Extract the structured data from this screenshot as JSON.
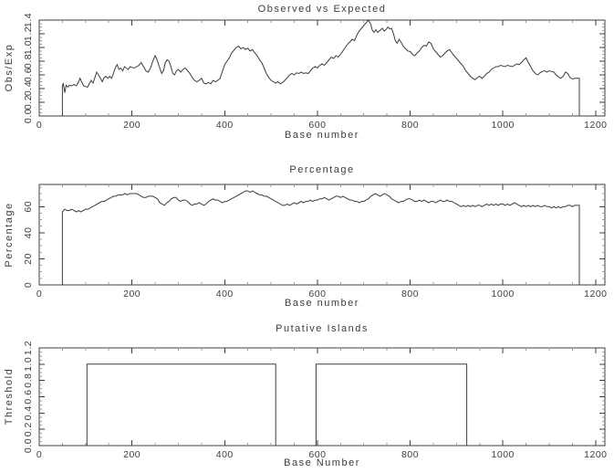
{
  "figure": {
    "background": "#ffffff",
    "line_color": "#3d3d3d",
    "minor_tick_color": "#9a9a9a",
    "text_color": "#3d3d3d"
  },
  "chart_data": [
    {
      "type": "line",
      "title": "Observed vs Expected",
      "xlabel": "Base number",
      "ylabel": "Obs/Exp",
      "xlim": [
        0,
        1220
      ],
      "ylim": [
        0,
        1.4
      ],
      "xticks": [
        0,
        200,
        400,
        600,
        800,
        1000,
        1200
      ],
      "x_minor": 50,
      "yticks": [
        0.0,
        0.2,
        0.4,
        0.6,
        0.8,
        1.0,
        1.2,
        1.4
      ],
      "ytick_labels": [
        "0.0",
        "0.2",
        "0.4",
        "0.6",
        "0.8",
        "1.0",
        "1.2",
        "1.4"
      ],
      "y_minor": 0.05,
      "grid": false,
      "legend": "none",
      "x": [
        50,
        50,
        52,
        55,
        58,
        62,
        65,
        70,
        75,
        80,
        85,
        88,
        92,
        96,
        100,
        104,
        108,
        112,
        116,
        120,
        124,
        128,
        132,
        136,
        140,
        144,
        148,
        152,
        156,
        160,
        164,
        168,
        172,
        176,
        180,
        184,
        188,
        192,
        196,
        200,
        205,
        210,
        215,
        220,
        225,
        230,
        235,
        240,
        245,
        250,
        253,
        256,
        260,
        264,
        268,
        272,
        276,
        280,
        284,
        288,
        292,
        296,
        300,
        305,
        310,
        315,
        320,
        325,
        330,
        335,
        340,
        345,
        350,
        355,
        360,
        365,
        370,
        375,
        380,
        385,
        390,
        395,
        400,
        405,
        410,
        415,
        420,
        425,
        430,
        435,
        440,
        445,
        450,
        455,
        460,
        465,
        470,
        475,
        480,
        485,
        490,
        495,
        500,
        505,
        510,
        515,
        520,
        525,
        530,
        535,
        540,
        545,
        550,
        555,
        560,
        565,
        570,
        575,
        580,
        585,
        590,
        595,
        600,
        605,
        610,
        615,
        620,
        625,
        630,
        635,
        640,
        645,
        650,
        655,
        660,
        665,
        670,
        675,
        680,
        685,
        690,
        695,
        700,
        705,
        710,
        715,
        718,
        722,
        726,
        730,
        735,
        740,
        744,
        748,
        752,
        756,
        760,
        764,
        768,
        772,
        776,
        780,
        785,
        790,
        795,
        800,
        805,
        810,
        815,
        820,
        825,
        830,
        835,
        840,
        845,
        850,
        855,
        860,
        865,
        870,
        875,
        880,
        885,
        890,
        895,
        900,
        905,
        910,
        915,
        920,
        925,
        930,
        935,
        940,
        945,
        950,
        955,
        960,
        965,
        970,
        975,
        980,
        985,
        990,
        995,
        1000,
        1005,
        1010,
        1015,
        1020,
        1025,
        1030,
        1035,
        1040,
        1045,
        1050,
        1055,
        1060,
        1065,
        1070,
        1075,
        1080,
        1085,
        1090,
        1095,
        1100,
        1105,
        1110,
        1115,
        1120,
        1125,
        1130,
        1135,
        1140,
        1145,
        1150,
        1155,
        1160,
        1165,
        1165
      ],
      "y": [
        0,
        0.44,
        0.48,
        0.34,
        0.45,
        0.42,
        0.45,
        0.44,
        0.46,
        0.44,
        0.5,
        0.55,
        0.49,
        0.44,
        0.43,
        0.42,
        0.47,
        0.52,
        0.48,
        0.56,
        0.64,
        0.6,
        0.55,
        0.5,
        0.56,
        0.58,
        0.55,
        0.58,
        0.55,
        0.62,
        0.7,
        0.75,
        0.68,
        0.7,
        0.66,
        0.72,
        0.7,
        0.68,
        0.72,
        0.71,
        0.7,
        0.72,
        0.74,
        0.78,
        0.72,
        0.66,
        0.64,
        0.7,
        0.8,
        0.88,
        0.84,
        0.78,
        0.7,
        0.62,
        0.66,
        0.78,
        0.82,
        0.8,
        0.72,
        0.62,
        0.6,
        0.66,
        0.68,
        0.64,
        0.68,
        0.7,
        0.66,
        0.62,
        0.56,
        0.52,
        0.5,
        0.52,
        0.55,
        0.48,
        0.47,
        0.49,
        0.47,
        0.52,
        0.5,
        0.52,
        0.55,
        0.65,
        0.75,
        0.8,
        0.85,
        0.92,
        0.96,
        1.0,
        1.02,
        0.98,
        1.0,
        0.97,
        0.99,
        0.95,
        0.97,
        0.92,
        0.88,
        0.82,
        0.78,
        0.7,
        0.62,
        0.56,
        0.52,
        0.5,
        0.48,
        0.5,
        0.47,
        0.49,
        0.52,
        0.56,
        0.6,
        0.62,
        0.6,
        0.63,
        0.62,
        0.64,
        0.62,
        0.63,
        0.62,
        0.66,
        0.7,
        0.72,
        0.7,
        0.74,
        0.76,
        0.74,
        0.78,
        0.82,
        0.86,
        0.84,
        0.88,
        0.86,
        0.9,
        0.95,
        1.0,
        1.05,
        1.08,
        1.12,
        1.1,
        1.18,
        1.24,
        1.28,
        1.32,
        1.36,
        1.4,
        1.34,
        1.26,
        1.22,
        1.26,
        1.22,
        1.25,
        1.28,
        1.24,
        1.26,
        1.3,
        1.27,
        1.28,
        1.2,
        1.1,
        1.06,
        1.12,
        1.08,
        1.02,
        0.98,
        0.95,
        0.94,
        0.9,
        0.88,
        0.92,
        0.95,
        1.0,
        1.03,
        1.02,
        1.08,
        1.06,
        0.98,
        0.94,
        0.9,
        0.86,
        0.88,
        0.92,
        0.95,
        0.97,
        0.92,
        0.88,
        0.84,
        0.8,
        0.76,
        0.72,
        0.66,
        0.62,
        0.58,
        0.55,
        0.53,
        0.56,
        0.58,
        0.55,
        0.58,
        0.62,
        0.64,
        0.68,
        0.7,
        0.72,
        0.72,
        0.74,
        0.73,
        0.72,
        0.74,
        0.73,
        0.72,
        0.74,
        0.76,
        0.75,
        0.78,
        0.82,
        0.85,
        0.78,
        0.72,
        0.66,
        0.62,
        0.6,
        0.63,
        0.65,
        0.66,
        0.64,
        0.66,
        0.65,
        0.64,
        0.6,
        0.57,
        0.55,
        0.58,
        0.64,
        0.62,
        0.56,
        0.54,
        0.55,
        0.55,
        0.55,
        0
      ]
    },
    {
      "type": "line",
      "title": "Percentage",
      "xlabel": "Base number",
      "ylabel": "Percentage",
      "xlim": [
        0,
        1220
      ],
      "ylim": [
        0,
        77
      ],
      "xticks": [
        0,
        200,
        400,
        600,
        800,
        1000,
        1200
      ],
      "x_minor": 50,
      "yticks": [
        0,
        20,
        40,
        60
      ],
      "ytick_labels": [
        "0",
        "20",
        "40",
        "60"
      ],
      "y_minor": 5,
      "grid": false,
      "legend": "none",
      "x": [
        50,
        50,
        55,
        60,
        65,
        70,
        75,
        80,
        85,
        90,
        95,
        100,
        105,
        110,
        115,
        120,
        125,
        130,
        135,
        140,
        145,
        150,
        155,
        160,
        165,
        170,
        175,
        180,
        185,
        190,
        195,
        200,
        205,
        210,
        215,
        220,
        225,
        230,
        235,
        240,
        245,
        250,
        255,
        260,
        265,
        270,
        275,
        280,
        285,
        290,
        295,
        300,
        305,
        310,
        315,
        320,
        325,
        330,
        335,
        340,
        345,
        350,
        355,
        360,
        365,
        370,
        375,
        380,
        385,
        390,
        395,
        400,
        405,
        410,
        415,
        420,
        425,
        430,
        435,
        440,
        445,
        450,
        455,
        460,
        465,
        470,
        475,
        480,
        485,
        490,
        495,
        500,
        505,
        510,
        515,
        520,
        525,
        530,
        535,
        540,
        545,
        550,
        555,
        560,
        565,
        570,
        575,
        580,
        585,
        590,
        595,
        600,
        605,
        610,
        615,
        620,
        625,
        630,
        635,
        640,
        645,
        650,
        655,
        660,
        665,
        670,
        675,
        680,
        685,
        690,
        695,
        700,
        705,
        710,
        715,
        720,
        725,
        730,
        735,
        740,
        745,
        750,
        755,
        760,
        765,
        770,
        775,
        780,
        785,
        790,
        795,
        800,
        805,
        810,
        815,
        820,
        825,
        830,
        835,
        840,
        845,
        850,
        855,
        860,
        865,
        870,
        875,
        880,
        885,
        890,
        895,
        900,
        905,
        910,
        915,
        920,
        925,
        930,
        935,
        940,
        945,
        950,
        955,
        960,
        965,
        970,
        975,
        980,
        985,
        990,
        995,
        1000,
        1005,
        1010,
        1015,
        1020,
        1025,
        1030,
        1035,
        1040,
        1045,
        1050,
        1055,
        1060,
        1065,
        1070,
        1075,
        1080,
        1085,
        1090,
        1095,
        1100,
        1105,
        1110,
        1115,
        1120,
        1125,
        1130,
        1135,
        1140,
        1145,
        1150,
        1155,
        1160,
        1165,
        1165
      ],
      "y": [
        0,
        56,
        58,
        57,
        57,
        58,
        57,
        56,
        57,
        56,
        57,
        58,
        58,
        59,
        60,
        61,
        62,
        63,
        64,
        64,
        65,
        66,
        67,
        68,
        68,
        69,
        69,
        69,
        70,
        69,
        70,
        70,
        70,
        70,
        69,
        68,
        67,
        67,
        68,
        68,
        68,
        67,
        66,
        63,
        62,
        61,
        63,
        64,
        66,
        67,
        67,
        65,
        64,
        65,
        65,
        64,
        62,
        61,
        62,
        62,
        63,
        62,
        61,
        62,
        64,
        65,
        66,
        65,
        65,
        64,
        63,
        64,
        64,
        65,
        66,
        67,
        68,
        69,
        70,
        71,
        72,
        72,
        71,
        72,
        71,
        70,
        69,
        69,
        68,
        68,
        67,
        66,
        65,
        64,
        63,
        62,
        61,
        61,
        62,
        61,
        62,
        63,
        62,
        63,
        64,
        63,
        64,
        64,
        65,
        64,
        65,
        65,
        66,
        66,
        67,
        66,
        65,
        66,
        67,
        68,
        68,
        67,
        68,
        67,
        66,
        65,
        65,
        64,
        64,
        63,
        64,
        64,
        65,
        66,
        68,
        69,
        70,
        69,
        68,
        69,
        70,
        69,
        68,
        66,
        65,
        64,
        63,
        64,
        64,
        65,
        66,
        66,
        65,
        64,
        64,
        65,
        64,
        65,
        64,
        63,
        64,
        64,
        63,
        64,
        65,
        64,
        64,
        65,
        64,
        64,
        63,
        62,
        61,
        60,
        61,
        60,
        61,
        60,
        61,
        60,
        61,
        61,
        60,
        61,
        62,
        61,
        62,
        61,
        62,
        61,
        62,
        62,
        61,
        62,
        61,
        62,
        63,
        62,
        61,
        60,
        61,
        60,
        61,
        60,
        61,
        60,
        61,
        60,
        60,
        61,
        60,
        60,
        59,
        60,
        59,
        60,
        59,
        60,
        60,
        61,
        61,
        60,
        61,
        61,
        61,
        0
      ]
    },
    {
      "type": "line",
      "title": "Putative Islands",
      "xlabel": "Base Number",
      "ylabel": "Threshold",
      "xlim": [
        0,
        1220
      ],
      "ylim": [
        0,
        1.2
      ],
      "xticks": [
        0,
        200,
        400,
        600,
        800,
        1000,
        1200
      ],
      "x_minor": 50,
      "yticks": [
        0.0,
        0.2,
        0.4,
        0.6,
        0.8,
        1.0,
        1.2
      ],
      "ytick_labels": [
        "0.0",
        "0.2",
        "0.4",
        "0.6",
        "0.8",
        "1.0",
        "1.2"
      ],
      "y_minor": 0.05,
      "grid": false,
      "legend": "none",
      "islands": [
        [
          103,
          510
        ],
        [
          597,
          922
        ]
      ],
      "island_height": 1.0,
      "baseline_end": 1216
    }
  ]
}
